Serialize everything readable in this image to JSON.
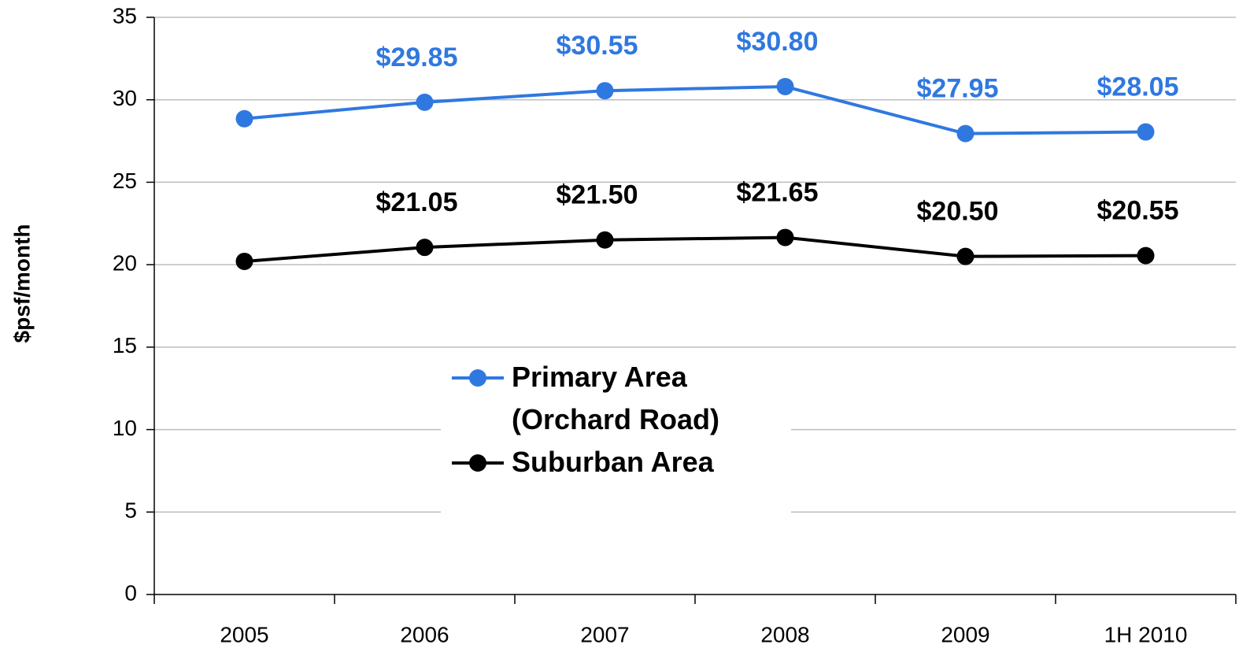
{
  "chart_data": {
    "type": "line",
    "y_label": "$psf/month",
    "categories": [
      "2005",
      "2006",
      "2007",
      "2008",
      "2009",
      "1H 2010"
    ],
    "series": [
      {
        "name": "Primary Area (Orchard Road)",
        "color": "#2f78e0",
        "values": [
          28.85,
          29.85,
          30.55,
          30.8,
          27.95,
          28.05
        ],
        "value_labels": [
          null,
          "$29.85",
          "$30.55",
          "$30.80",
          "$27.95",
          "$28.05"
        ]
      },
      {
        "name": "Suburban Area",
        "color": "#000000",
        "values": [
          20.2,
          21.05,
          21.5,
          21.65,
          20.5,
          20.55
        ],
        "value_labels": [
          null,
          "$21.05",
          "$21.50",
          "$21.65",
          "$20.50",
          "$20.55"
        ]
      }
    ],
    "ylim": [
      0,
      35
    ],
    "yticks": [
      0,
      5,
      10,
      15,
      20,
      25,
      30,
      35
    ],
    "grid": true,
    "legend": "center"
  }
}
